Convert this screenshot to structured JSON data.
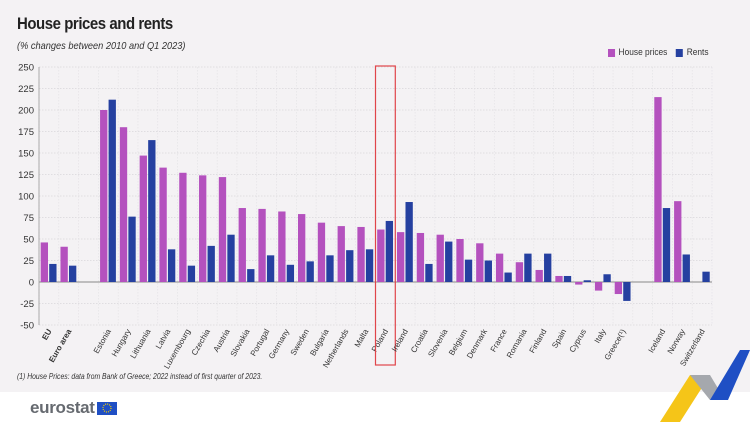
{
  "chart_data": {
    "type": "bar",
    "title": "House prices and rents",
    "subtitle": "(% changes between 2010 and Q1 2023)",
    "xlabel": "",
    "ylabel": "",
    "ylim": [
      -50,
      250
    ],
    "yticks": [
      -50,
      -25,
      0,
      25,
      50,
      75,
      100,
      125,
      150,
      175,
      200,
      225,
      250
    ],
    "grid": true,
    "legend_position": "top-right",
    "categories": [
      "EU",
      "Euro area",
      "",
      "Estonia",
      "Hungary",
      "Lithuania",
      "Latvia",
      "Luxembourg",
      "Czechia",
      "Austria",
      "Slovakia",
      "Portugal",
      "Germany",
      "Sweden",
      "Bulgaria",
      "Netherlands",
      "Malta",
      "Poland",
      "Ireland",
      "Croatia",
      "Slovenia",
      "Belgium",
      "Denmark",
      "France",
      "Romania",
      "Finland",
      "Spain",
      "Cyprus",
      "Italy",
      "Greece(¹)",
      "",
      "Iceland",
      "Norway",
      "Switzerland"
    ],
    "bold_categories": [
      "EU",
      "Euro area"
    ],
    "highlighted_category": "Poland",
    "series": [
      {
        "name": "House prices",
        "color": "#b451be",
        "values": [
          46,
          41,
          null,
          200,
          180,
          147,
          133,
          127,
          124,
          122,
          86,
          85,
          82,
          79,
          69,
          65,
          64,
          61,
          58,
          57,
          55,
          50,
          45,
          33,
          23,
          14,
          7,
          -3,
          -10,
          -14,
          null,
          215,
          94,
          null
        ]
      },
      {
        "name": "Rents",
        "color": "#2540a0",
        "values": [
          21,
          19,
          null,
          212,
          76,
          165,
          38,
          19,
          42,
          55,
          15,
          31,
          20,
          24,
          31,
          37,
          38,
          71,
          93,
          21,
          47,
          26,
          25,
          11,
          33,
          33,
          7,
          2,
          9,
          -22,
          null,
          86,
          32,
          12
        ]
      }
    ],
    "footnote": "(1) House Prices: data from Bank of Greece; 2022 instead of first quarter of 2023."
  },
  "brand": {
    "logo_text": "eurostat"
  },
  "colors": {
    "highlight_box": "#e0454a",
    "background": "#f4f2f4"
  }
}
